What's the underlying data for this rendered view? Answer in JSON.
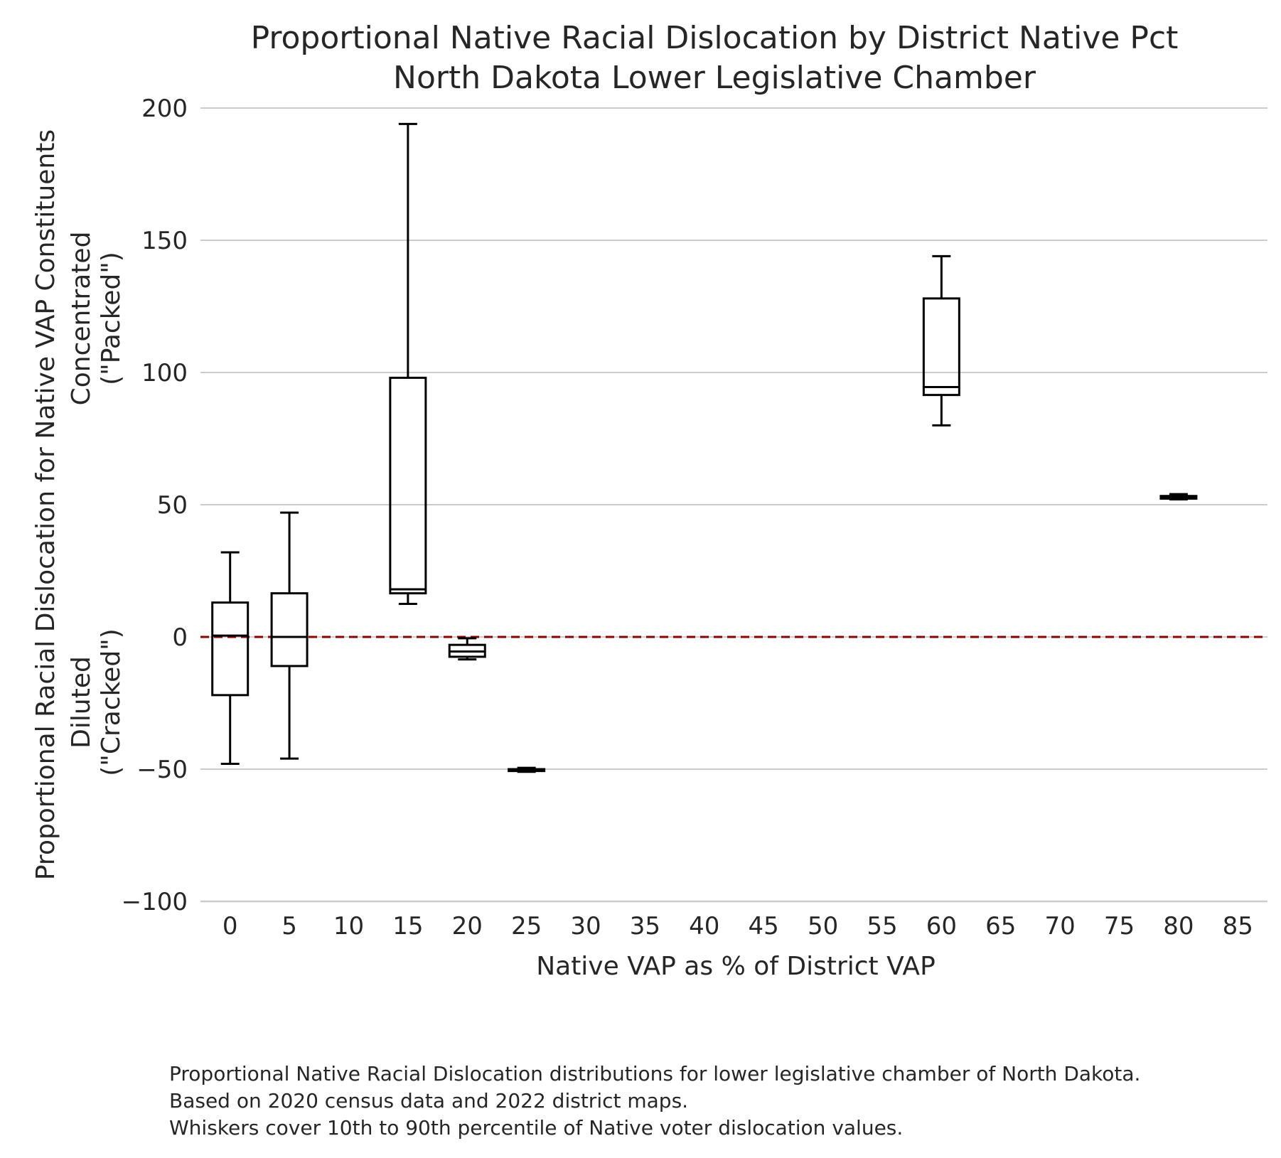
{
  "chart_data": {
    "type": "box",
    "title": "Proportional Native Racial Dislocation by District Native Pct",
    "subtitle": "North Dakota Lower Legislative Chamber",
    "xlabel": "Native VAP as % of District VAP",
    "ylabel_lines": [
      "Proportional Racial Dislocation for Native VAP Constituents",
      "Concentrated",
      "(\"Packed\")",
      "Diluted",
      "(\"Cracked\")"
    ],
    "x_ticks": [
      0,
      5,
      10,
      15,
      20,
      25,
      30,
      35,
      40,
      45,
      50,
      55,
      60,
      65,
      70,
      75,
      80,
      85
    ],
    "y_ticks": [
      -100,
      -50,
      0,
      50,
      100,
      150,
      200
    ],
    "ylim": [
      -100,
      200
    ],
    "xlim": [
      -2.5,
      87.5
    ],
    "grid": "horizontal",
    "reference_line": {
      "y": 0,
      "style": "dashed",
      "color": "#8b0000"
    },
    "box_color": "#000000",
    "boxes": [
      {
        "x": 0,
        "whislo": -48,
        "q1": -22,
        "median": 0.5,
        "q3": 13,
        "whishi": 32
      },
      {
        "x": 5,
        "whislo": -46,
        "q1": -11,
        "median": 0,
        "q3": 16.5,
        "whishi": 47
      },
      {
        "x": 15,
        "whislo": 12.5,
        "q1": 16.5,
        "median": 18,
        "q3": 98,
        "whishi": 194
      },
      {
        "x": 20,
        "whislo": -8.5,
        "q1": -7.5,
        "median": -5.5,
        "q3": -3,
        "whishi": -0.5
      },
      {
        "x": 25,
        "whislo": -51,
        "q1": -50.7,
        "median": -50.3,
        "q3": -50,
        "whishi": -49.5
      },
      {
        "x": 60,
        "whislo": 80,
        "q1": 91.5,
        "median": 94.5,
        "q3": 128,
        "whishi": 144
      },
      {
        "x": 80,
        "whislo": 52,
        "q1": 52.3,
        "median": 52.8,
        "q3": 53.3,
        "whishi": 54
      }
    ]
  },
  "caption": [
    "Proportional Native Racial Dislocation distributions for lower legislative chamber of North Dakota.",
    "Based on 2020 census data and 2022 district maps.",
    "Whiskers cover 10th to 90th percentile of Native voter dislocation values."
  ]
}
